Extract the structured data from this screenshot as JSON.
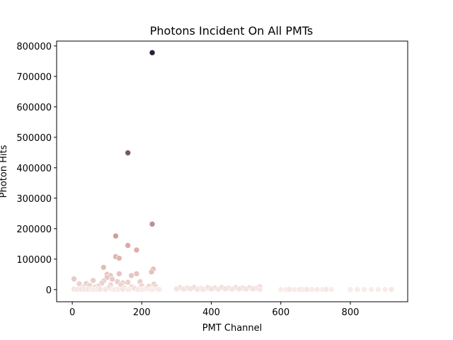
{
  "chart_data": {
    "type": "scatter",
    "title": "Photons Incident On All PMTs",
    "xlabel": "PMT Channel",
    "ylabel": "Photon Hits",
    "xlim": [
      -45,
      965
    ],
    "ylim": [
      -40000,
      816000
    ],
    "xticks": [
      0,
      200,
      400,
      600,
      800
    ],
    "yticks": [
      0,
      100000,
      200000,
      300000,
      400000,
      500000,
      600000,
      700000,
      800000
    ],
    "grid": false,
    "legend": "none",
    "hue": "photon hits (sequential pink-to-purple)",
    "colors": {
      "low": "#f7ece9",
      "high": "#2d1e3e"
    },
    "points": [
      [
        230,
        778000
      ],
      [
        160,
        449000
      ],
      [
        230,
        215000
      ],
      [
        125,
        176000
      ],
      [
        160,
        145000
      ],
      [
        185,
        130000
      ],
      [
        125,
        108000
      ],
      [
        135,
        103000
      ],
      [
        90,
        73000
      ],
      [
        233,
        67000
      ],
      [
        228,
        58000
      ],
      [
        135,
        52000
      ],
      [
        185,
        52000
      ],
      [
        100,
        50000
      ],
      [
        110,
        46000
      ],
      [
        170,
        46000
      ],
      [
        100,
        40000
      ],
      [
        115,
        34000
      ],
      [
        5,
        35000
      ],
      [
        60,
        30000
      ],
      [
        90,
        28000
      ],
      [
        130,
        26000
      ],
      [
        195,
        26000
      ],
      [
        160,
        24000
      ],
      [
        145,
        22000
      ],
      [
        85,
        21000
      ],
      [
        40,
        20000
      ],
      [
        20,
        19000
      ],
      [
        235,
        18000
      ],
      [
        140,
        16000
      ],
      [
        110,
        15000
      ],
      [
        50,
        14000
      ],
      [
        75,
        12000
      ],
      [
        200,
        12000
      ],
      [
        220,
        11000
      ],
      [
        240,
        10000
      ],
      [
        170,
        9000
      ],
      [
        65,
        8000
      ],
      [
        30,
        7000
      ],
      [
        105,
        6000
      ],
      [
        150,
        5000
      ],
      [
        180,
        4000
      ],
      [
        210,
        3000
      ],
      [
        245,
        2000
      ],
      [
        5,
        1500
      ],
      [
        15,
        800
      ],
      [
        25,
        1200
      ],
      [
        35,
        900
      ],
      [
        45,
        700
      ],
      [
        55,
        1000
      ],
      [
        70,
        600
      ],
      [
        80,
        1100
      ],
      [
        95,
        500
      ],
      [
        115,
        800
      ],
      [
        130,
        400
      ],
      [
        145,
        900
      ],
      [
        165,
        700
      ],
      [
        190,
        600
      ],
      [
        205,
        500
      ],
      [
        225,
        300
      ],
      [
        250,
        200
      ],
      [
        60,
        0
      ],
      [
        120,
        0
      ],
      [
        160,
        0
      ],
      [
        200,
        0
      ],
      [
        230,
        0
      ],
      [
        310,
        6000
      ],
      [
        330,
        5000
      ],
      [
        350,
        7000
      ],
      [
        370,
        4000
      ],
      [
        390,
        6000
      ],
      [
        410,
        5500
      ],
      [
        430,
        7000
      ],
      [
        450,
        4500
      ],
      [
        470,
        6500
      ],
      [
        490,
        5000
      ],
      [
        510,
        6000
      ],
      [
        530,
        4000
      ],
      [
        540,
        9000
      ],
      [
        300,
        2000
      ],
      [
        320,
        1500
      ],
      [
        340,
        2500
      ],
      [
        360,
        1000
      ],
      [
        380,
        1800
      ],
      [
        400,
        2200
      ],
      [
        420,
        1200
      ],
      [
        440,
        2600
      ],
      [
        460,
        1400
      ],
      [
        480,
        2000
      ],
      [
        500,
        1600
      ],
      [
        520,
        2400
      ],
      [
        375,
        500
      ],
      [
        540,
        500
      ],
      [
        600,
        0
      ],
      [
        615,
        0
      ],
      [
        625,
        500
      ],
      [
        640,
        0
      ],
      [
        655,
        300
      ],
      [
        665,
        0
      ],
      [
        675,
        400
      ],
      [
        690,
        0
      ],
      [
        705,
        200
      ],
      [
        720,
        0
      ],
      [
        730,
        300
      ],
      [
        745,
        0
      ],
      [
        800,
        0
      ],
      [
        820,
        0
      ],
      [
        840,
        0
      ],
      [
        860,
        0
      ],
      [
        880,
        0
      ],
      [
        900,
        0
      ],
      [
        918,
        400
      ]
    ]
  }
}
